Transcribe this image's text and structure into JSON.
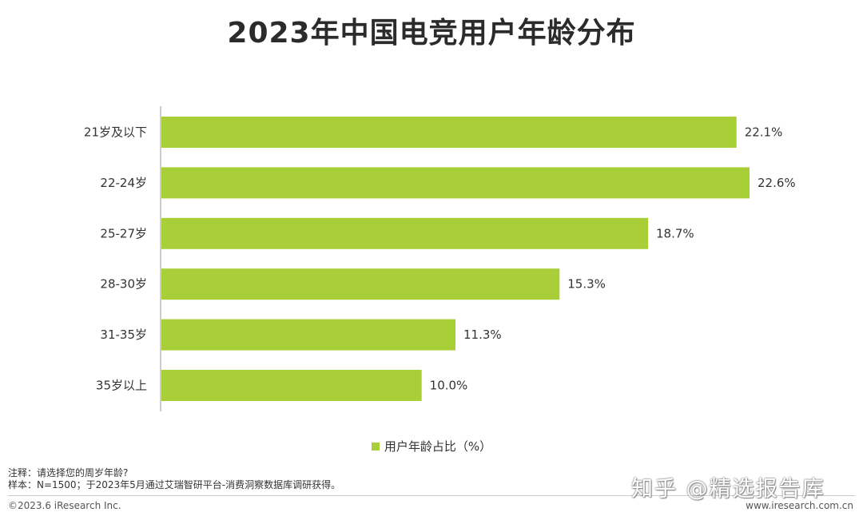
{
  "title": "2023年中国电竞用户年龄分布",
  "chart_data": {
    "type": "bar",
    "orientation": "horizontal",
    "title": "2023年中国电竞用户年龄分布",
    "categories": [
      "21岁及以下",
      "22-24岁",
      "25-27岁",
      "28-30岁",
      "31-35岁",
      "35岁以上"
    ],
    "series": [
      {
        "name": "用户年龄占比（%）",
        "values": [
          22.1,
          22.6,
          18.7,
          15.3,
          11.3,
          10.0
        ],
        "labels": [
          "22.1%",
          "22.6%",
          "18.7%",
          "15.3%",
          "11.3%",
          "10.0%"
        ],
        "color": "#a8cf38"
      }
    ],
    "xlim": [
      0,
      22.6
    ],
    "grid": false,
    "legend_position": "bottom"
  },
  "legend": {
    "label": "用户年龄占比（%）",
    "color": "#a8cf38"
  },
  "notes": [
    "注释：请选择您的周岁年龄?",
    "样本：N=1500；于2023年5月通过艾瑞智研平台-消费洞察数据库调研获得。"
  ],
  "copyright": "©2023.6 iResearch Inc.",
  "website": "www.iresearch.com.cn",
  "watermark": "知乎 @精选报告库"
}
